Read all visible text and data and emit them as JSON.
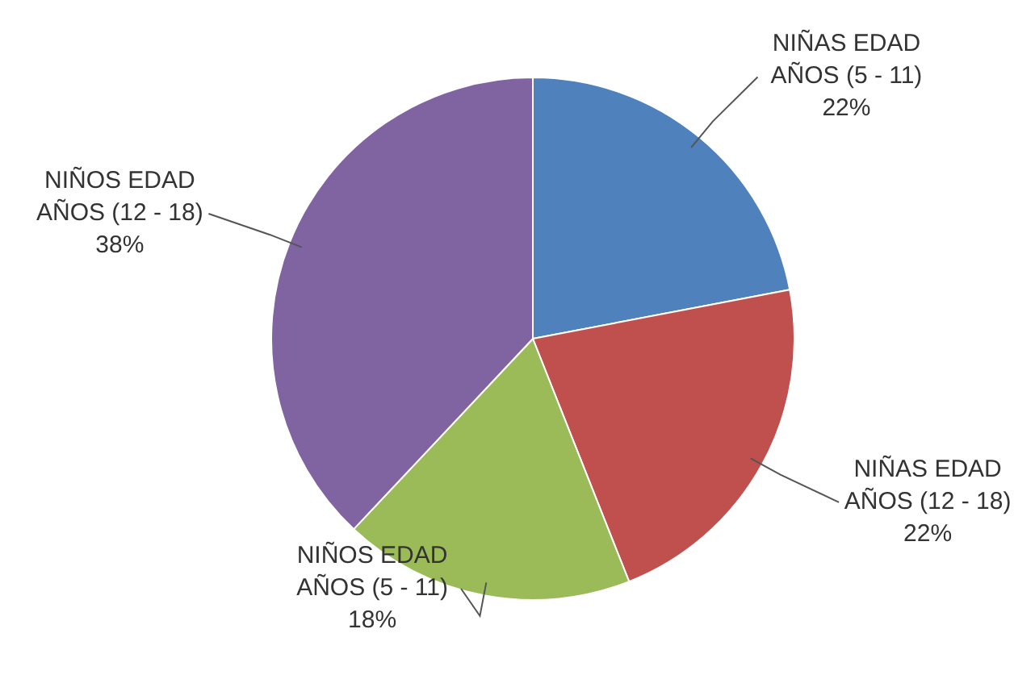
{
  "chart_data": {
    "type": "pie",
    "categories": [
      "NIÑAS EDAD AÑOS (5 - 11)",
      "NIÑAS EDAD AÑOS (12 - 18)",
      "NIÑOS EDAD AÑOS (5 - 11)",
      "NIÑOS EDAD AÑOS (12 - 18)"
    ],
    "values": [
      22,
      22,
      18,
      38
    ],
    "value_labels": [
      "22%",
      "22%",
      "18%",
      "38%"
    ],
    "colors": [
      "#4f81bd",
      "#c0504d",
      "#9bbb59",
      "#8064a2"
    ]
  }
}
